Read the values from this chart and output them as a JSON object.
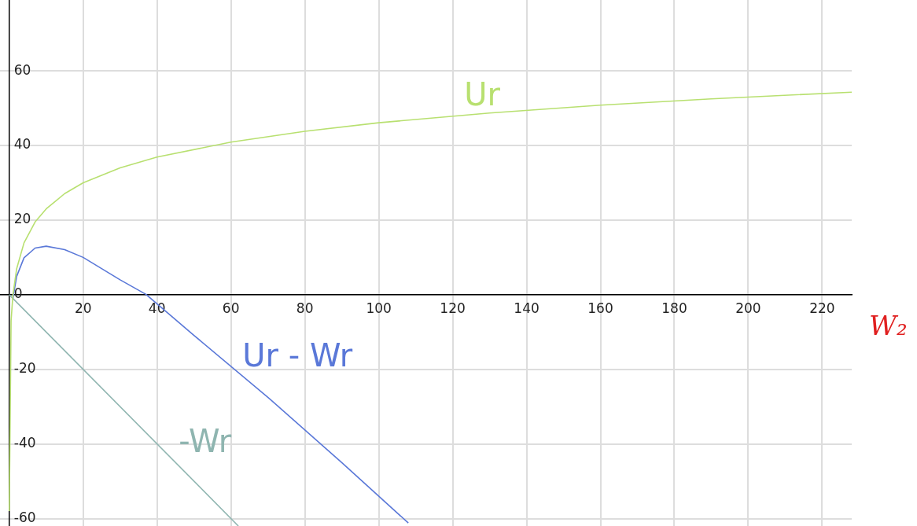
{
  "chart_data": {
    "type": "line",
    "xlabel": "W₂",
    "xlim": [
      -2.5,
      228
    ],
    "ylim": [
      -62,
      79
    ],
    "xticks": [
      20,
      40,
      60,
      80,
      100,
      120,
      140,
      160,
      180,
      200,
      220
    ],
    "yticks": [
      -60,
      -40,
      -20,
      0,
      20,
      40,
      60
    ],
    "grid": true,
    "legend": false,
    "marker": "none",
    "line_style": "solid",
    "series": [
      {
        "name": "Ur",
        "color": "#b8e070",
        "x": [
          0.003,
          0.5,
          1,
          2,
          4,
          7,
          10,
          15,
          20,
          30,
          40,
          60,
          80,
          100,
          130,
          160,
          190,
          228
        ],
        "values": [
          -58,
          -7,
          0,
          6.9,
          13.9,
          19.5,
          23,
          27.1,
          30,
          34,
          36.9,
          40.9,
          43.8,
          46.1,
          48.7,
          50.8,
          52.5,
          54.3
        ]
      },
      {
        "name": "Ur - Wr",
        "color": "#5a78d8",
        "x": [
          1,
          2,
          4,
          7,
          10,
          15,
          20,
          30,
          37,
          50,
          70,
          90,
          108
        ],
        "values": [
          -1,
          4.9,
          9.9,
          12.5,
          13,
          12.1,
          10,
          4,
          0.1,
          -10.9,
          -27.5,
          -45,
          -61.2
        ]
      },
      {
        "name": "-Wr",
        "color": "#8fb5b0",
        "x": [
          0,
          62
        ],
        "values": [
          0,
          -62
        ]
      }
    ]
  }
}
